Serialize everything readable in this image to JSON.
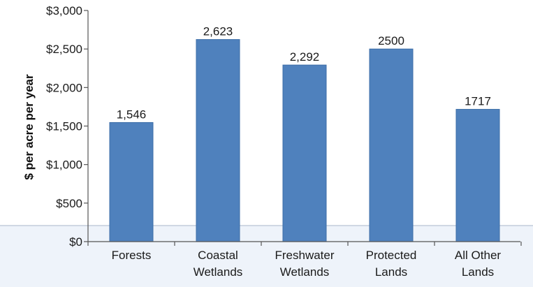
{
  "chart_data": {
    "type": "bar",
    "title": "",
    "xlabel": "",
    "ylabel": "$ per acre per year",
    "categories": [
      [
        "Forests"
      ],
      [
        "Coastal",
        "Wetlands"
      ],
      [
        "Freshwater",
        "Wetlands"
      ],
      [
        "Protected",
        "Lands"
      ],
      [
        "All Other",
        "Lands"
      ]
    ],
    "values": [
      1546,
      2623,
      2292,
      2500,
      1717
    ],
    "data_labels": [
      "1,546",
      "2,623",
      "2,292",
      "2500",
      "1717"
    ],
    "ylim": [
      0,
      3000
    ],
    "yticks": [
      0,
      500,
      1000,
      1500,
      2000,
      2500,
      3000
    ],
    "ytick_labels": [
      "$0",
      "$500",
      "$1,000",
      "$1,500",
      "$2,000",
      "$2,500",
      "$3,000"
    ],
    "grid": false,
    "legend": "none",
    "colors": {
      "bar": "#4f81bd",
      "bar_edge": "#3d6ea8",
      "axis": "#555555",
      "lower_band": "#eef3fa"
    }
  }
}
